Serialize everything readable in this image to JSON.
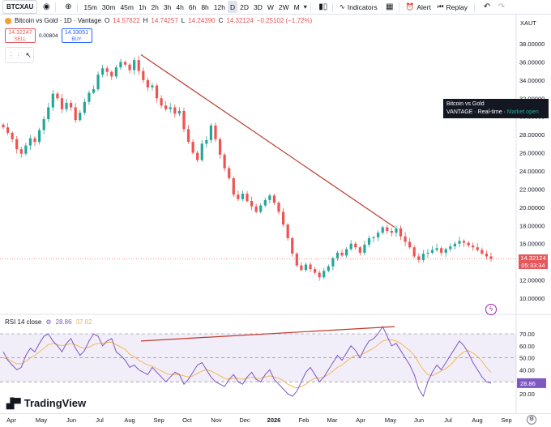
{
  "toolbar": {
    "symbol": "BTCXAU",
    "intervals": [
      "15m",
      "30m",
      "45m",
      "1h",
      "2h",
      "3h",
      "4h",
      "6h",
      "8h",
      "12h",
      "D",
      "2D",
      "3D",
      "W",
      "2W",
      "M"
    ],
    "active_interval": "D",
    "indicators_label": "Indicators",
    "alert_label": "Alert",
    "replay_label": "Replay"
  },
  "legend": {
    "title": "Bitcoin vs Gold · 1D · Vantage",
    "o_label": "O",
    "o": "14.57822",
    "h_label": "H",
    "h": "14.74257",
    "l_label": "L",
    "l": "14.24390",
    "c_label": "C",
    "c": "14.32124",
    "change": "−0.25102 (−1.72%)"
  },
  "trade": {
    "sell_price": "14.32247",
    "sell_label": "SELL",
    "spread": "0.00804",
    "buy_price": "14.33051",
    "buy_label": "BUY"
  },
  "price_axis": {
    "currency": "XAUT",
    "labels": [
      "38.00000",
      "36.00000",
      "34.00000",
      "32.00000",
      "30.00000",
      "28.00000",
      "26.00000",
      "24.00000",
      "22.00000",
      "20.00000",
      "18.00000",
      "16.00000",
      "12.00000",
      "10.00000"
    ],
    "current_price": "14.32124",
    "countdown": "05:33:34"
  },
  "tooltip": {
    "title": "Bitcoin vs Gold",
    "source": "VANTAGE",
    "mode": "Real-time",
    "status": "Market open"
  },
  "rsi": {
    "label": "RSI 14 close",
    "value": "28.86",
    "ma_value": "37.82",
    "axis_labels": [
      "70.00",
      "60.00",
      "50.00",
      "40.00",
      "30.00",
      "20.00"
    ],
    "current_tag": "28.86"
  },
  "logo": {
    "text": "TradingView"
  },
  "time_axis": {
    "labels": [
      "Apr",
      "May",
      "Jun",
      "Jul",
      "Aug",
      "Sep",
      "Oct",
      "Nov",
      "Dec",
      "2026",
      "Feb",
      "Mar",
      "Apr",
      "May",
      "Jun",
      "Jul",
      "Aug",
      "Sep"
    ]
  },
  "colors": {
    "up": "#26a69a",
    "down": "#ef5350",
    "trendline": "#c0392b",
    "rsi_line": "#7e57c2",
    "rsi_ma": "#f0b44b",
    "rsi_band": "#7e57c2"
  },
  "chart_data": {
    "type": "candlestick",
    "series": [
      {
        "name": "Bitcoin vs Gold",
        "values": [
          28.8,
          28.2,
          27.5,
          26.4,
          25.9,
          26.8,
          27.6,
          27.2,
          28.5,
          29.7,
          31.0,
          32.5,
          32.0,
          30.8,
          31.5,
          31.0,
          29.6,
          30.4,
          31.6,
          32.6,
          33.0,
          34.6,
          35.3,
          34.9,
          34.4,
          35.4,
          36.0,
          35.7,
          35.1,
          36.2,
          35.0,
          34.0,
          33.2,
          33.4,
          32.0,
          31.2,
          30.8,
          31.0,
          30.3,
          30.6,
          28.6,
          27.2,
          26.0,
          25.2,
          27.0,
          27.4,
          29.0,
          27.5,
          25.8,
          24.3,
          23.2,
          21.4,
          20.9,
          21.5,
          20.7,
          20.1,
          19.5,
          20.2,
          20.8,
          21.3,
          20.5,
          19.5,
          18.1,
          16.6,
          14.9,
          13.6,
          13.1,
          13.7,
          13.2,
          12.8,
          12.3,
          13.0,
          13.5,
          14.4,
          15.0,
          14.7,
          15.4,
          16.0,
          15.6,
          15.0,
          15.9,
          16.6,
          16.7,
          17.2,
          17.8,
          17.4,
          17.2,
          17.7,
          16.8,
          16.2,
          15.6,
          14.6,
          14.2,
          14.9,
          15.0,
          15.3,
          15.5,
          15.0,
          15.4,
          15.7,
          16.0,
          16.3,
          16.1,
          15.8,
          15.6,
          15.3,
          14.9,
          14.6,
          14.32
        ]
      }
    ],
    "trendline_price": [
      [
        36.8,
        17.8
      ]
    ],
    "rsi_series": [
      55,
      48,
      44,
      40,
      42,
      52,
      58,
      55,
      62,
      68,
      70,
      64,
      60,
      55,
      62,
      66,
      58,
      52,
      56,
      64,
      70,
      68,
      60,
      64,
      66,
      55,
      52,
      48,
      42,
      44,
      40,
      38,
      36,
      42,
      38,
      34,
      30,
      34,
      38,
      36,
      28,
      32,
      38,
      44,
      46,
      40,
      34,
      30,
      28,
      26,
      32,
      36,
      30,
      28,
      34,
      38,
      32,
      30,
      36,
      40,
      32,
      28,
      24,
      20,
      18,
      22,
      30,
      38,
      42,
      36,
      30,
      34,
      40,
      46,
      52,
      48,
      54,
      60,
      56,
      50,
      58,
      64,
      66,
      70,
      76,
      68,
      60,
      62,
      56,
      50,
      44,
      36,
      24,
      18,
      30,
      38,
      44,
      40,
      46,
      52,
      58,
      64,
      60,
      54,
      46,
      40,
      34,
      30,
      28.86
    ],
    "rsi_ma_series": [
      50,
      49,
      47,
      45,
      45,
      47,
      50,
      52,
      55,
      58,
      61,
      62,
      61,
      60,
      61,
      62,
      61,
      59,
      58,
      59,
      61,
      62,
      62,
      63,
      63,
      61,
      59,
      57,
      53,
      51,
      48,
      46,
      44,
      43,
      41,
      39,
      37,
      36,
      36,
      36,
      35,
      34,
      35,
      37,
      39,
      40,
      39,
      37,
      35,
      33,
      32,
      33,
      33,
      32,
      33,
      34,
      33,
      33,
      34,
      35,
      34,
      33,
      31,
      28,
      26,
      25,
      26,
      28,
      31,
      33,
      33,
      34,
      36,
      39,
      42,
      44,
      47,
      50,
      52,
      52,
      54,
      56,
      58,
      61,
      64,
      65,
      65,
      64,
      62,
      59,
      56,
      52,
      46,
      40,
      36,
      35,
      37,
      39,
      41,
      44,
      48,
      52,
      55,
      56,
      54,
      51,
      47,
      42,
      37.82
    ],
    "rsi_trendline": [
      [
        64,
        76
      ]
    ],
    "rsi_levels": {
      "upper": 70,
      "middle": 50,
      "lower": 30
    },
    "price_range": [
      10,
      38
    ],
    "rsi_range": [
      20,
      80
    ]
  }
}
